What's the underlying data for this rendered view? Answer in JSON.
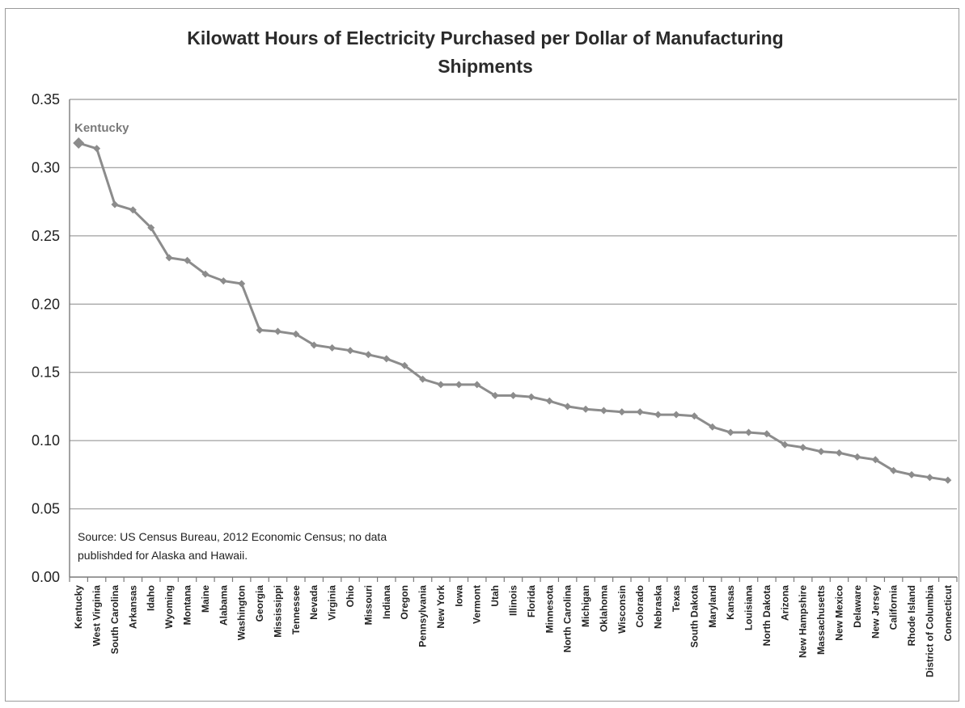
{
  "chart_data": {
    "type": "line",
    "title": "Kilowatt Hours of Electricity Purchased per Dollar of Manufacturing Shipments",
    "title_lines": [
      "Kilowatt Hours of Electricity Purchased per Dollar of Manufacturing",
      "Shipments"
    ],
    "xlabel": "",
    "ylabel": "",
    "ylim": [
      0,
      0.35
    ],
    "yticks": [
      "0.00",
      "0.05",
      "0.10",
      "0.15",
      "0.20",
      "0.25",
      "0.30",
      "0.35"
    ],
    "grid": "horizontal",
    "legend": "none",
    "categories": [
      "Kentucky",
      "West Virginia",
      "South Carolina",
      "Arkansas",
      "Idaho",
      "Wyoming",
      "Montana",
      "Maine",
      "Alabama",
      "Washington",
      "Georgia",
      "Mississippi",
      "Tennessee",
      "Nevada",
      "Virginia",
      "Ohio",
      "Missouri",
      "Indiana",
      "Oregon",
      "Pennsylvania",
      "New York",
      "Iowa",
      "Vermont",
      "Utah",
      "Illinois",
      "Florida",
      "Minnesota",
      "North Carolina",
      "Michigan",
      "Oklahoma",
      "Wisconsin",
      "Colorado",
      "Nebraska",
      "Texas",
      "South Dakota",
      "Maryland",
      "Kansas",
      "Louisiana",
      "North Dakota",
      "Arizona",
      "New Hampshire",
      "Massachusetts",
      "New Mexico",
      "Delaware",
      "New Jersey",
      "California",
      "Rhode Island",
      "District of Columbia",
      "Connecticut"
    ],
    "values": [
      0.318,
      0.314,
      0.273,
      0.269,
      0.256,
      0.234,
      0.232,
      0.222,
      0.217,
      0.215,
      0.181,
      0.18,
      0.178,
      0.17,
      0.168,
      0.166,
      0.163,
      0.16,
      0.155,
      0.145,
      0.141,
      0.141,
      0.141,
      0.133,
      0.133,
      0.132,
      0.129,
      0.125,
      0.123,
      0.122,
      0.121,
      0.121,
      0.119,
      0.119,
      0.118,
      0.11,
      0.106,
      0.106,
      0.105,
      0.097,
      0.095,
      0.092,
      0.091,
      0.088,
      0.086,
      0.078,
      0.075,
      0.073,
      0.071
    ],
    "annotation": "Kentucky",
    "source_lines": [
      "Source: US Census Bureau, 2012 Economic Census; no data",
      "publishded for Alaska and Hawaii."
    ],
    "colors": {
      "line": "#8c8c8c",
      "marker": "#8c8c8c",
      "grid": "#a8a8a8",
      "axis": "#7a7a7a",
      "annotation": "#7a7a7a"
    }
  }
}
